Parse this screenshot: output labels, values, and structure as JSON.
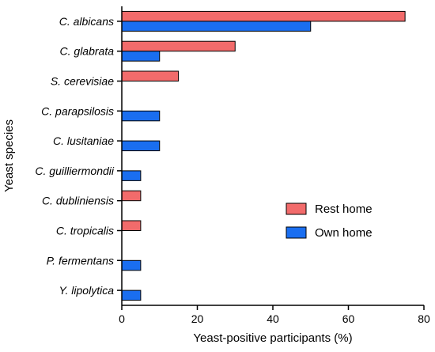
{
  "chart_data": {
    "type": "bar",
    "orientation": "horizontal",
    "categories": [
      "C. albicans",
      "C. glabrata",
      "S. cerevisiae",
      "C. parapsilosis",
      "C. lusitaniae",
      "C. guilliermondii",
      "C. dubliniensis",
      "C. tropicalis",
      "P. fermentans",
      "Y. lipolytica"
    ],
    "series": [
      {
        "name": "Rest home",
        "color": "#f26b6b",
        "values": [
          75,
          30,
          15,
          0,
          0,
          0,
          5,
          5,
          0,
          0
        ]
      },
      {
        "name": "Own home",
        "color": "#1a6ef0",
        "values": [
          50,
          10,
          0,
          10,
          10,
          5,
          0,
          0,
          5,
          5
        ]
      }
    ],
    "xlabel": "Yeast-positive participants (%)",
    "ylabel": "Yeast species",
    "xlim": [
      0,
      80
    ],
    "xticks": [
      "0",
      "20",
      "40",
      "60",
      "80"
    ],
    "grid": false,
    "legend_position": "center-right"
  }
}
